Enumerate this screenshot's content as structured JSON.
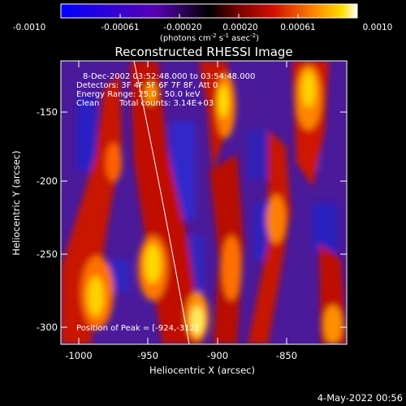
{
  "colorbar": {
    "ticks": [
      "-0.0010",
      "-0.00061",
      "-0.00020",
      "0.00020",
      "0.00061",
      "0.0010"
    ],
    "units_prefix": "(photons cm",
    "units_exp1": "-2",
    "units_mid": " s",
    "units_exp2": "-1",
    "units_mid2": " asec",
    "units_exp3": "-2",
    "units_suffix": ")"
  },
  "title": "Reconstructed RHESSI Image",
  "annotations": {
    "time_range": "8-Dec-2002 03:52:48.000 to 03:54:48.000",
    "detectors": "Detectors: 3F 4F 5F 6F 7F 8F, Att 0",
    "energy": "Energy Range: 25.0 - 50.0 keV",
    "clean": "Clean",
    "total_counts": "Total counts: 3.14E+03",
    "peak": "Position of Peak = [-924,-312]"
  },
  "axes": {
    "xlabel": "Heliocentric X (arcsec)",
    "ylabel": "Heliocentric Y (arcsec)",
    "xticks": [
      "-1000",
      "-950",
      "-900",
      "-850"
    ],
    "yticks": [
      "-150",
      "-200",
      "-250",
      "-300"
    ]
  },
  "footer_date": "4-May-2022 00:56",
  "colors": {
    "background": "#000000",
    "limb_line": "#ffffff"
  }
}
